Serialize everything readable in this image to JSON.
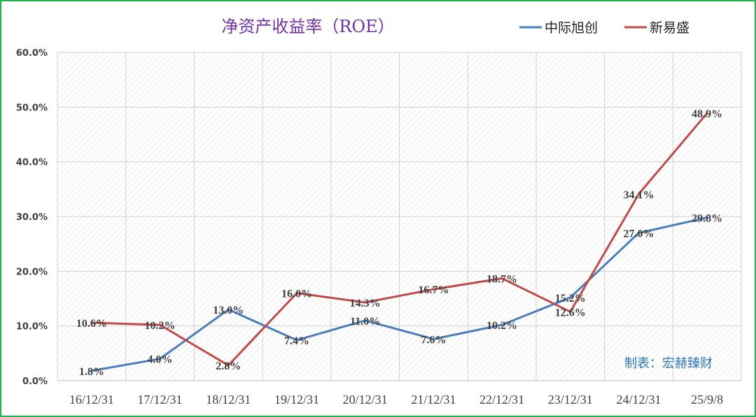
{
  "chart_data": {
    "type": "line",
    "title": "净资产收益率（ROE）",
    "categories": [
      "16/12/31",
      "17/12/31",
      "18/12/31",
      "19/12/31",
      "20/12/31",
      "21/12/31",
      "22/12/31",
      "23/12/31",
      "24/12/31",
      "25/9/8"
    ],
    "series": [
      {
        "name": "中际旭创",
        "color": "#4a7ebb",
        "values": [
          1.8,
          4.0,
          13.0,
          7.4,
          11.0,
          7.6,
          10.2,
          15.2,
          27.0,
          29.8
        ]
      },
      {
        "name": "新易盛",
        "color": "#be4b48",
        "values": [
          10.6,
          10.2,
          2.8,
          16.0,
          14.3,
          16.7,
          18.7,
          12.6,
          34.1,
          48.9
        ]
      }
    ],
    "y_ticks": [
      "0.0%",
      "10.0%",
      "20.0%",
      "30.0%",
      "40.0%",
      "50.0%",
      "60.0%"
    ],
    "ylim": [
      0,
      60
    ],
    "unit": "%",
    "legend_position": "top-right",
    "grid": true,
    "plot_background": "diagonal hatch",
    "credit": "制表：宏赫臻财"
  }
}
